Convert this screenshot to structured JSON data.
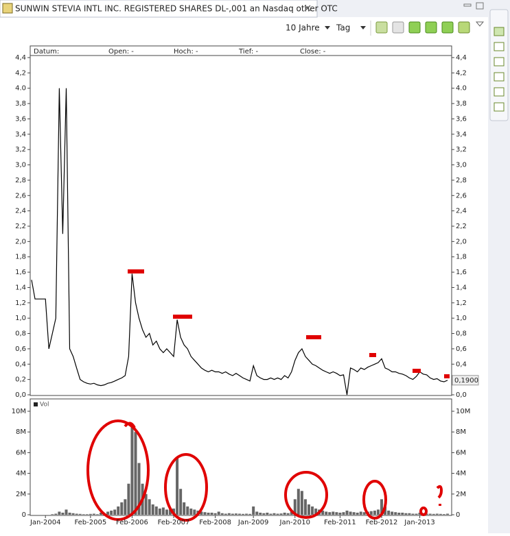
{
  "ui": {
    "tab_title": "SUNWIN STEVIA INTL INC. REGISTERED SHARES DL-,001 an Nasdaq other OTC",
    "range": "10 Jahre",
    "interval": "Tag",
    "info": [
      "Datum:",
      "Open: -",
      "Hoch: -",
      "Tief: -",
      "Close: -"
    ]
  },
  "chart_data": [
    {
      "type": "line",
      "color": "#000000",
      "x": [
        "2003-09",
        "2003-10",
        "2003-11",
        "2003-12",
        "2004-01",
        "2004-02",
        "2004-03",
        "2004-04",
        "2004-05",
        "2004-06",
        "2004-07",
        "2004-08",
        "2004-09",
        "2004-10",
        "2004-11",
        "2004-12",
        "2005-01",
        "2005-02",
        "2005-03",
        "2005-04",
        "2005-05",
        "2005-06",
        "2005-07",
        "2005-08",
        "2005-09",
        "2005-10",
        "2005-11",
        "2005-12",
        "2006-01",
        "2006-02",
        "2006-03",
        "2006-04",
        "2006-05",
        "2006-06",
        "2006-07",
        "2006-08",
        "2006-09",
        "2006-10",
        "2006-11",
        "2006-12",
        "2007-01",
        "2007-02",
        "2007-03",
        "2007-04",
        "2007-05",
        "2007-06",
        "2007-07",
        "2007-08",
        "2007-09",
        "2007-10",
        "2007-11",
        "2007-12",
        "2008-01",
        "2008-02",
        "2008-03",
        "2008-04",
        "2008-05",
        "2008-06",
        "2008-07",
        "2008-08",
        "2008-09",
        "2008-10",
        "2008-11",
        "2008-12",
        "2009-01",
        "2009-02",
        "2009-03",
        "2009-04",
        "2009-05",
        "2009-06",
        "2009-07",
        "2009-08",
        "2009-09",
        "2009-10",
        "2009-11",
        "2009-12",
        "2010-01",
        "2010-02",
        "2010-03",
        "2010-04",
        "2010-05",
        "2010-06",
        "2010-07",
        "2010-08",
        "2010-09",
        "2010-10",
        "2010-11",
        "2010-12",
        "2011-01",
        "2011-02",
        "2011-03",
        "2011-04",
        "2011-05",
        "2011-06",
        "2011-07",
        "2011-08",
        "2011-09",
        "2011-10",
        "2011-11",
        "2011-12",
        "2012-01",
        "2012-02",
        "2012-03",
        "2012-04",
        "2012-05",
        "2012-06",
        "2012-07",
        "2012-08",
        "2012-09",
        "2012-10",
        "2012-11",
        "2012-12",
        "2013-01",
        "2013-02",
        "2013-03",
        "2013-04",
        "2013-05",
        "2013-06",
        "2013-07",
        "2013-08",
        "2013-09"
      ],
      "values": [
        1.5,
        1.25,
        1.25,
        1.25,
        1.25,
        0.6,
        0.8,
        1.0,
        4.0,
        2.1,
        4.0,
        0.6,
        0.5,
        0.35,
        0.2,
        0.17,
        0.15,
        0.14,
        0.15,
        0.13,
        0.12,
        0.13,
        0.15,
        0.16,
        0.18,
        0.2,
        0.22,
        0.25,
        0.5,
        1.58,
        1.2,
        1.0,
        0.85,
        0.75,
        0.8,
        0.65,
        0.7,
        0.6,
        0.55,
        0.6,
        0.55,
        0.5,
        0.98,
        0.75,
        0.65,
        0.6,
        0.5,
        0.45,
        0.4,
        0.35,
        0.32,
        0.3,
        0.32,
        0.3,
        0.3,
        0.28,
        0.3,
        0.27,
        0.25,
        0.28,
        0.25,
        0.22,
        0.2,
        0.18,
        0.38,
        0.25,
        0.22,
        0.2,
        0.2,
        0.22,
        0.2,
        0.22,
        0.2,
        0.25,
        0.22,
        0.3,
        0.45,
        0.55,
        0.6,
        0.5,
        0.45,
        0.4,
        0.38,
        0.35,
        0.32,
        0.3,
        0.28,
        0.3,
        0.28,
        0.25,
        0.26,
        0.0,
        0.35,
        0.33,
        0.3,
        0.35,
        0.33,
        0.36,
        0.38,
        0.4,
        0.42,
        0.47,
        0.35,
        0.33,
        0.3,
        0.3,
        0.28,
        0.27,
        0.25,
        0.22,
        0.2,
        0.24,
        0.3,
        0.27,
        0.26,
        0.22,
        0.2,
        0.21,
        0.18,
        0.17,
        0.19
      ],
      "xlim": [
        "2003-09",
        "2013-10"
      ],
      "ylim": [
        0,
        4.4
      ],
      "yticks": [
        {
          "value": 0,
          "label": "0,0"
        },
        {
          "value": 0.2,
          "label": "0,2"
        },
        {
          "value": 0.4,
          "label": "0,4"
        },
        {
          "value": 0.6,
          "label": "0,6"
        },
        {
          "value": 0.8,
          "label": "0,8"
        },
        {
          "value": 1.0,
          "label": "1,0"
        },
        {
          "value": 1.2,
          "label": "1,2"
        },
        {
          "value": 1.4,
          "label": "1,4"
        },
        {
          "value": 1.6,
          "label": "1,6"
        },
        {
          "value": 1.8,
          "label": "1,8"
        },
        {
          "value": 2.0,
          "label": "2,0"
        },
        {
          "value": 2.2,
          "label": "2,2"
        },
        {
          "value": 2.4,
          "label": "2,4"
        },
        {
          "value": 2.6,
          "label": "2,6"
        },
        {
          "value": 2.8,
          "label": "2,8"
        },
        {
          "value": 3.0,
          "label": "3,0"
        },
        {
          "value": 3.2,
          "label": "3,2"
        },
        {
          "value": 3.4,
          "label": "3,4"
        },
        {
          "value": 3.6,
          "label": "3,6"
        },
        {
          "value": 3.8,
          "label": "3,8"
        },
        {
          "value": 4.0,
          "label": "4.0"
        },
        {
          "value": 4.2,
          "label": "4,2"
        },
        {
          "value": 4.4,
          "label": "4,4"
        }
      ],
      "last_price": {
        "value": 0.19,
        "label": "0,1900"
      }
    },
    {
      "type": "bar",
      "x": [
        "2003-09",
        "2003-10",
        "2003-11",
        "2003-12",
        "2004-01",
        "2004-02",
        "2004-03",
        "2004-04",
        "2004-05",
        "2004-06",
        "2004-07",
        "2004-08",
        "2004-09",
        "2004-10",
        "2004-11",
        "2004-12",
        "2005-01",
        "2005-02",
        "2005-03",
        "2005-04",
        "2005-05",
        "2005-06",
        "2005-07",
        "2005-08",
        "2005-09",
        "2005-10",
        "2005-11",
        "2005-12",
        "2006-01",
        "2006-02",
        "2006-03",
        "2006-04",
        "2006-05",
        "2006-06",
        "2006-07",
        "2006-08",
        "2006-09",
        "2006-10",
        "2006-11",
        "2006-12",
        "2007-01",
        "2007-02",
        "2007-03",
        "2007-04",
        "2007-05",
        "2007-06",
        "2007-07",
        "2007-08",
        "2007-09",
        "2007-10",
        "2007-11",
        "2007-12",
        "2008-01",
        "2008-02",
        "2008-03",
        "2008-04",
        "2008-05",
        "2008-06",
        "2008-07",
        "2008-08",
        "2008-09",
        "2008-10",
        "2008-11",
        "2008-12",
        "2009-01",
        "2009-02",
        "2009-03",
        "2009-04",
        "2009-05",
        "2009-06",
        "2009-07",
        "2009-08",
        "2009-09",
        "2009-10",
        "2009-11",
        "2009-12",
        "2010-01",
        "2010-02",
        "2010-03",
        "2010-04",
        "2010-05",
        "2010-06",
        "2010-07",
        "2010-08",
        "2010-09",
        "2010-10",
        "2010-11",
        "2010-12",
        "2011-01",
        "2011-02",
        "2011-03",
        "2011-04",
        "2011-05",
        "2011-06",
        "2011-07",
        "2011-08",
        "2011-09",
        "2011-10",
        "2011-11",
        "2011-12",
        "2012-01",
        "2012-02",
        "2012-03",
        "2012-04",
        "2012-05",
        "2012-06",
        "2012-07",
        "2012-08",
        "2012-09",
        "2012-10",
        "2012-11",
        "2012-12",
        "2013-01",
        "2013-02",
        "2013-03",
        "2013-04",
        "2013-05",
        "2013-06",
        "2013-07",
        "2013-08",
        "2013-09"
      ],
      "series": [
        {
          "name": "Vol",
          "color": "#666666",
          "values": [
            0,
            0,
            0,
            0,
            0,
            0,
            50000,
            100000,
            300000,
            200000,
            500000,
            200000,
            150000,
            100000,
            80000,
            50000,
            50000,
            80000,
            100000,
            50000,
            200000,
            150000,
            300000,
            400000,
            500000,
            800000,
            1200000,
            1500000,
            3000000,
            8500000,
            8000000,
            5000000,
            3000000,
            2000000,
            1500000,
            1000000,
            800000,
            600000,
            700000,
            500000,
            500000,
            600000,
            5500000,
            2500000,
            1200000,
            800000,
            600000,
            500000,
            400000,
            300000,
            250000,
            200000,
            200000,
            150000,
            300000,
            150000,
            100000,
            150000,
            100000,
            120000,
            100000,
            80000,
            100000,
            80000,
            800000,
            300000,
            200000,
            150000,
            200000,
            100000,
            150000,
            100000,
            120000,
            200000,
            150000,
            300000,
            1500000,
            2500000,
            2300000,
            1500000,
            1000000,
            800000,
            600000,
            500000,
            400000,
            300000,
            250000,
            300000,
            250000,
            200000,
            250000,
            400000,
            300000,
            250000,
            200000,
            300000,
            250000,
            300000,
            350000,
            400000,
            500000,
            1500000,
            800000,
            400000,
            300000,
            250000,
            200000,
            200000,
            150000,
            150000,
            100000,
            100000,
            200000,
            150000,
            100000,
            100000,
            80000,
            100000,
            80000,
            60000,
            100000
          ]
        }
      ],
      "xlim": [
        "2003-09",
        "2013-10"
      ],
      "ylim": [
        0,
        10000000
      ],
      "yticks": [
        0,
        {
          "value": 2000000,
          "label": "2M"
        },
        {
          "value": 4000000,
          "label": "4M"
        },
        {
          "value": 6000000,
          "label": "6M"
        },
        {
          "value": 8000000,
          "label": "8M"
        },
        {
          "value": 10000000,
          "label": "10M"
        }
      ],
      "xticks": [
        {
          "value": "2004-01",
          "label": "Jan-2004"
        },
        {
          "value": "2005-02",
          "label": "Feb-2005"
        },
        {
          "value": "2006-02",
          "label": "Feb-2006"
        },
        {
          "value": "2007-02",
          "label": "Feb-2007"
        },
        {
          "value": "2008-02",
          "label": "Feb-2008"
        },
        {
          "value": "2009-01",
          "label": "Jan-2009"
        },
        {
          "value": "2010-01",
          "label": "Jan-2010"
        },
        {
          "value": "2011-02",
          "label": "Feb-2011"
        },
        {
          "value": "2012-02",
          "label": "Feb-2012"
        },
        {
          "value": "2013-01",
          "label": "Jan-2013"
        }
      ]
    }
  ]
}
